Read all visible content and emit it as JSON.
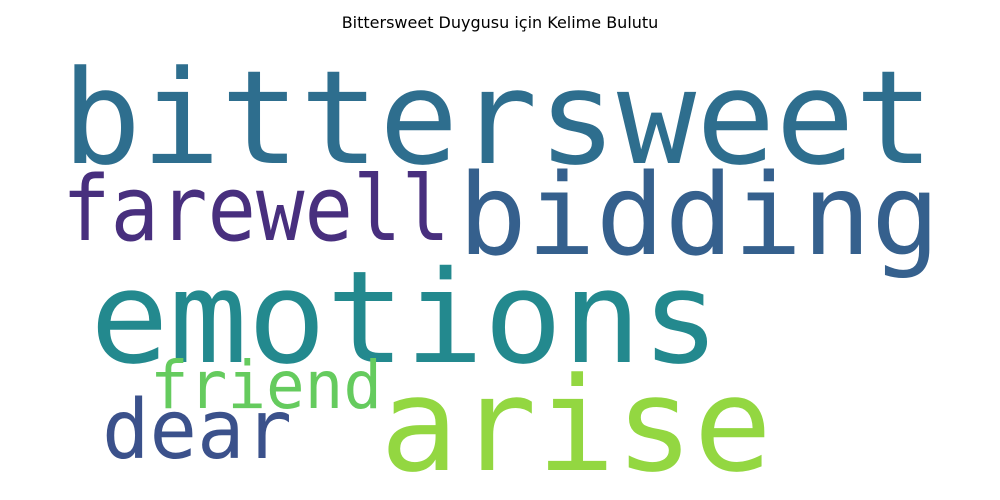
{
  "title": "Bittersweet Duygusu için Kelime Bulutu",
  "words": [
    {
      "key": "bittersweet",
      "text": "bittersweet",
      "color": "#2e6e8e"
    },
    {
      "key": "bidding",
      "text": "bidding",
      "color": "#35608d"
    },
    {
      "key": "farewell",
      "text": "farewell",
      "color": "#482f7e"
    },
    {
      "key": "emotions",
      "text": "emotions",
      "color": "#23898e"
    },
    {
      "key": "friend",
      "text": "friend",
      "color": "#65cb5e"
    },
    {
      "key": "dear",
      "text": "dear",
      "color": "#3b518b"
    },
    {
      "key": "arise",
      "text": "arise",
      "color": "#93d741"
    }
  ]
}
